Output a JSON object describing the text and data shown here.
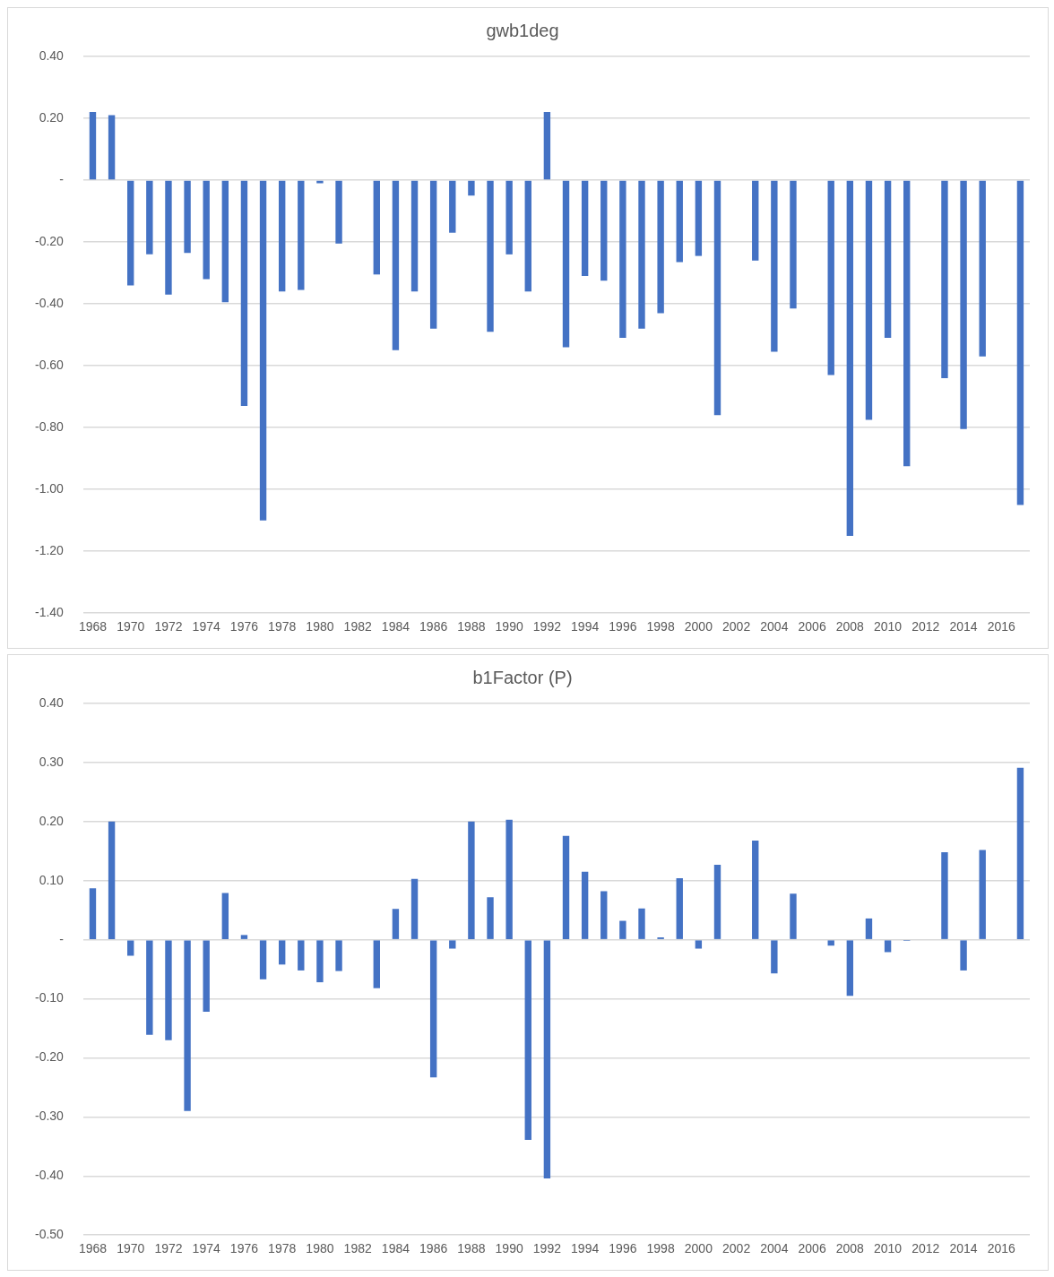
{
  "chart_data": [
    {
      "type": "bar",
      "title": "gwb1deg",
      "categories": [
        "1968",
        null,
        "1970",
        null,
        "1972",
        null,
        "1974",
        null,
        "1976",
        null,
        "1978",
        null,
        "1980",
        null,
        "1982",
        null,
        "1984",
        null,
        "1986",
        null,
        "1988",
        null,
        "1990",
        null,
        "1992",
        null,
        "1994",
        null,
        "1996",
        null,
        "1998",
        null,
        "2000",
        null,
        "2002",
        null,
        "2004",
        null,
        "2006",
        null,
        "2008",
        null,
        "2010",
        null,
        "2012",
        null,
        "2014",
        null,
        "2016",
        null
      ],
      "values": [
        0.22,
        0.21,
        -0.34,
        -0.24,
        -0.37,
        -0.235,
        -0.32,
        -0.395,
        -0.73,
        -1.1,
        -0.36,
        -0.355,
        -0.01,
        -0.205,
        null,
        -0.305,
        -0.55,
        -0.36,
        -0.48,
        -0.17,
        -0.05,
        -0.49,
        -0.24,
        -0.36,
        0.22,
        -0.54,
        -0.31,
        -0.325,
        -0.51,
        -0.48,
        -0.43,
        -0.265,
        -0.245,
        -0.76,
        null,
        -0.26,
        -0.555,
        -0.415,
        null,
        -0.63,
        -1.15,
        -0.775,
        -0.51,
        -0.925,
        null,
        -0.64,
        -0.805,
        -0.57,
        null,
        -1.05
      ],
      "color": "#4472c4",
      "ylim": [
        -1.4,
        0.4
      ],
      "yticks": [
        {
          "value": -1.4,
          "label": "-1.40"
        },
        {
          "value": -1.2,
          "label": "-1.20"
        },
        {
          "value": -1,
          "label": "-1.00"
        },
        {
          "value": -0.8,
          "label": "-0.80"
        },
        {
          "value": -0.6,
          "label": "-0.60"
        },
        {
          "value": -0.4,
          "label": "-0.40"
        },
        {
          "value": -0.2,
          "label": "-0.20"
        },
        {
          "value": 0,
          "label": "-"
        },
        {
          "value": 0.2,
          "label": "0.20"
        },
        {
          "value": 0.4,
          "label": "0.40"
        }
      ],
      "grid": "y"
    },
    {
      "type": "bar",
      "title": "b1Factor (P)",
      "categories": [
        "1968",
        null,
        "1970",
        null,
        "1972",
        null,
        "1974",
        null,
        "1976",
        null,
        "1978",
        null,
        "1980",
        null,
        "1982",
        null,
        "1984",
        null,
        "1986",
        null,
        "1988",
        null,
        "1990",
        null,
        "1992",
        null,
        "1994",
        null,
        "1996",
        null,
        "1998",
        null,
        "2000",
        null,
        "2002",
        null,
        "2004",
        null,
        "2006",
        null,
        "2008",
        null,
        "2010",
        null,
        "2012",
        null,
        "2014",
        null,
        "2016",
        null
      ],
      "values": [
        0.087,
        0.2,
        -0.027,
        -0.161,
        -0.17,
        -0.29,
        -0.122,
        0.079,
        0.008,
        -0.067,
        -0.042,
        -0.052,
        -0.072,
        -0.053,
        null,
        -0.082,
        0.052,
        0.103,
        -0.233,
        -0.015,
        0.2,
        0.072,
        0.203,
        -0.339,
        -0.404,
        0.176,
        0.115,
        0.082,
        0.032,
        0.053,
        0.004,
        0.104,
        -0.015,
        0.127,
        null,
        0.168,
        -0.057,
        0.078,
        null,
        -0.01,
        -0.095,
        0.036,
        -0.021,
        -0.002,
        null,
        0.148,
        -0.052,
        0.152,
        null,
        0.291
      ],
      "color": "#4472c4",
      "ylim": [
        -0.5,
        0.4
      ],
      "yticks": [
        {
          "value": -0.5,
          "label": "-0.50"
        },
        {
          "value": -0.4,
          "label": "-0.40"
        },
        {
          "value": -0.3,
          "label": "-0.30"
        },
        {
          "value": -0.2,
          "label": "-0.20"
        },
        {
          "value": -0.1,
          "label": "-0.10"
        },
        {
          "value": 0,
          "label": "-"
        },
        {
          "value": 0.1,
          "label": "0.10"
        },
        {
          "value": 0.2,
          "label": "0.20"
        },
        {
          "value": 0.3,
          "label": "0.30"
        },
        {
          "value": 0.4,
          "label": "0.40"
        }
      ],
      "grid": "y"
    }
  ]
}
